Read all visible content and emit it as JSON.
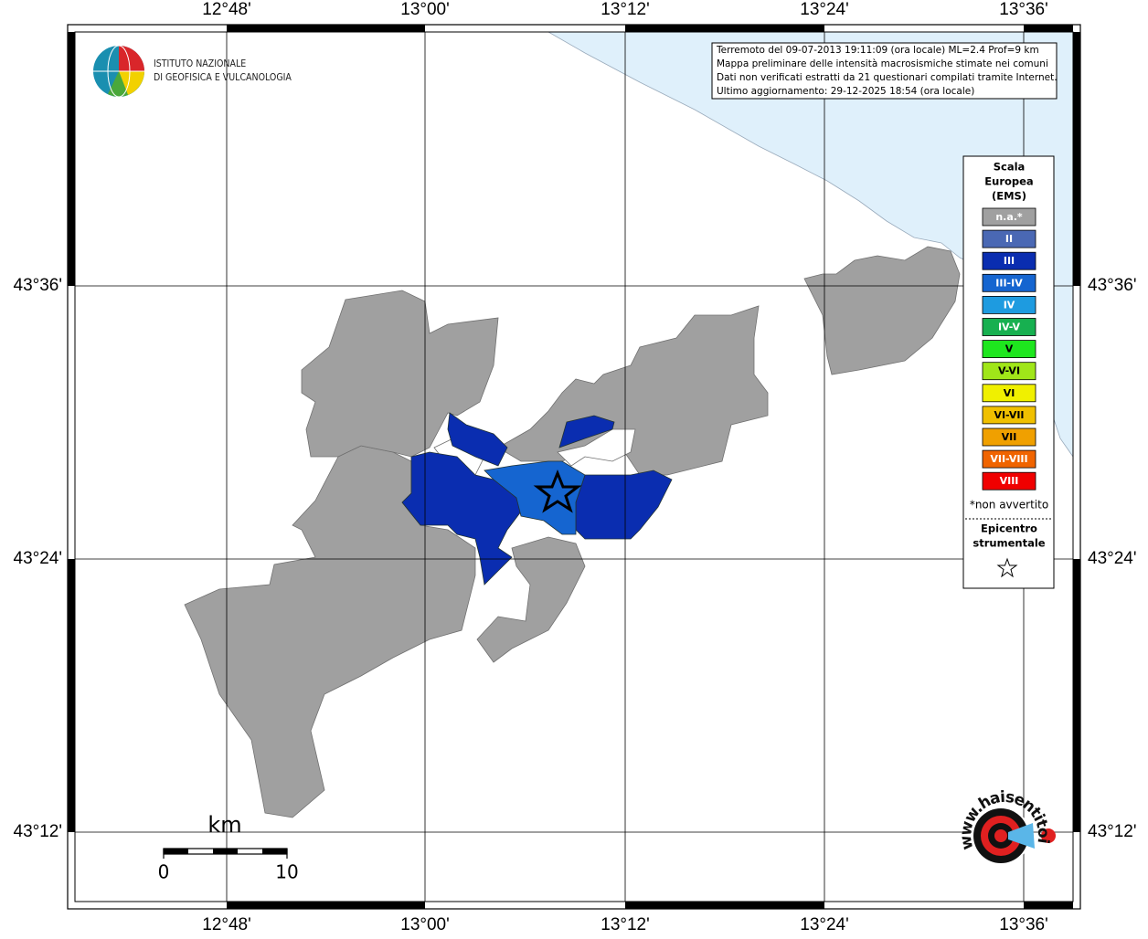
{
  "logo": {
    "line1": "ISTITUTO NAZIONALE",
    "line2": "DI GEOFISICA E VULCANOLOGIA"
  },
  "axes": {
    "lon_labels": [
      "12°48'",
      "13°00'",
      "13°12'",
      "13°24'",
      "13°36'"
    ],
    "lat_labels": [
      "43°36'",
      "43°24'",
      "43°12'"
    ]
  },
  "info": [
    "Terremoto del 09-07-2013 19:11:09 (ora locale) ML=2.4 Prof=9 km",
    "Mappa preliminare delle intensità macrosismiche stimate nei comuni",
    "Dati non verificati estratti da 21 questionari compilati tramite Internet.",
    "Ultimo aggiornamento: 29-12-2025 18:54 (ora locale)"
  ],
  "legend": {
    "title": [
      "Scala",
      "Europea",
      "(EMS)"
    ],
    "items": [
      {
        "label": "n.a.*",
        "color": "#a0a0a0"
      },
      {
        "label": "II",
        "color": "#4a68b4"
      },
      {
        "label": "III",
        "color": "#0a2db0"
      },
      {
        "label": "III-IV",
        "color": "#1565d0"
      },
      {
        "label": "IV",
        "color": "#1e9be0"
      },
      {
        "label": "IV-V",
        "color": "#17b050"
      },
      {
        "label": "V",
        "color": "#1ee61e"
      },
      {
        "label": "V-VI",
        "color": "#a0e619"
      },
      {
        "label": "VI",
        "color": "#f0f000"
      },
      {
        "label": "VI-VII",
        "color": "#f0c000"
      },
      {
        "label": "VII",
        "color": "#f0a000"
      },
      {
        "label": "VII-VIII",
        "color": "#f06400"
      },
      {
        "label": "VIII",
        "color": "#f00000"
      }
    ],
    "note": "*non avvertito",
    "epicenter": [
      "Epicentro",
      "strumentale"
    ]
  },
  "scale_bar": {
    "unit": "km",
    "start": "0",
    "end": "10"
  },
  "site_logo": "www.haisentitoilterremoto.it"
}
